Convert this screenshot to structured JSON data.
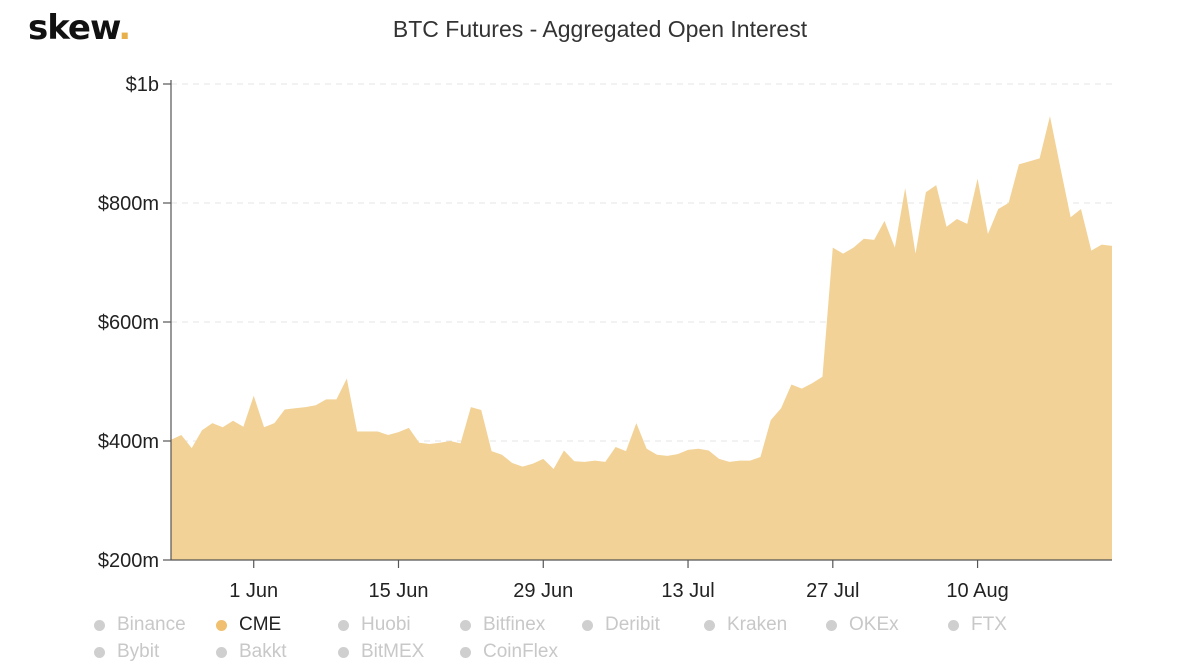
{
  "brand": {
    "name": "skew",
    "dot": "."
  },
  "chart_data": {
    "type": "area",
    "title": "BTC Futures - Aggregated Open Interest",
    "xlabel": "",
    "ylabel": "",
    "ylim": [
      200,
      1000
    ],
    "y_ticks": [
      200,
      400,
      600,
      800,
      1000
    ],
    "y_tick_labels": [
      "$200m",
      "$400m",
      "$600m",
      "$800m",
      "$1b"
    ],
    "x_tick_labels": [
      "1 Jun",
      "15 Jun",
      "29 Jun",
      "13 Jul",
      "27 Jul",
      "10 Aug"
    ],
    "x_tick_days": [
      152,
      166,
      180,
      194,
      208,
      222
    ],
    "x_start_day": 144,
    "grid": "horizontal dashed",
    "fill_color": "#f2d296",
    "series": [
      {
        "name": "CME",
        "color": "#f0c070",
        "values": [
          402,
          410,
          388,
          418,
          430,
          423,
          434,
          424,
          476,
          423,
          430,
          453,
          455,
          457,
          460,
          470,
          470,
          505,
          416,
          416,
          416,
          410,
          415,
          422,
          397,
          395,
          397,
          400,
          396,
          457,
          452,
          383,
          377,
          363,
          357,
          362,
          370,
          353,
          384,
          366,
          365,
          367,
          365,
          390,
          383,
          430,
          387,
          377,
          375,
          378,
          385,
          387,
          384,
          370,
          365,
          367,
          367,
          373,
          435,
          455,
          495,
          488,
          497,
          508,
          725,
          715,
          725,
          740,
          738,
          770,
          725,
          825,
          715,
          818,
          830,
          760,
          773,
          765,
          841,
          748,
          790,
          800,
          865,
          870,
          875,
          946,
          860,
          776,
          790,
          720,
          730,
          728
        ]
      }
    ]
  },
  "legend": {
    "items": [
      {
        "label": "Binance",
        "active": false
      },
      {
        "label": "CME",
        "active": true
      },
      {
        "label": "Huobi",
        "active": false
      },
      {
        "label": "Bitfinex",
        "active": false
      },
      {
        "label": "Deribit",
        "active": false
      },
      {
        "label": "Kraken",
        "active": false
      },
      {
        "label": "OKEx",
        "active": false
      },
      {
        "label": "FTX",
        "active": false
      },
      {
        "label": "Bybit",
        "active": false
      },
      {
        "label": "Bakkt",
        "active": false
      },
      {
        "label": "BitMEX",
        "active": false
      },
      {
        "label": "CoinFlex",
        "active": false
      }
    ]
  }
}
